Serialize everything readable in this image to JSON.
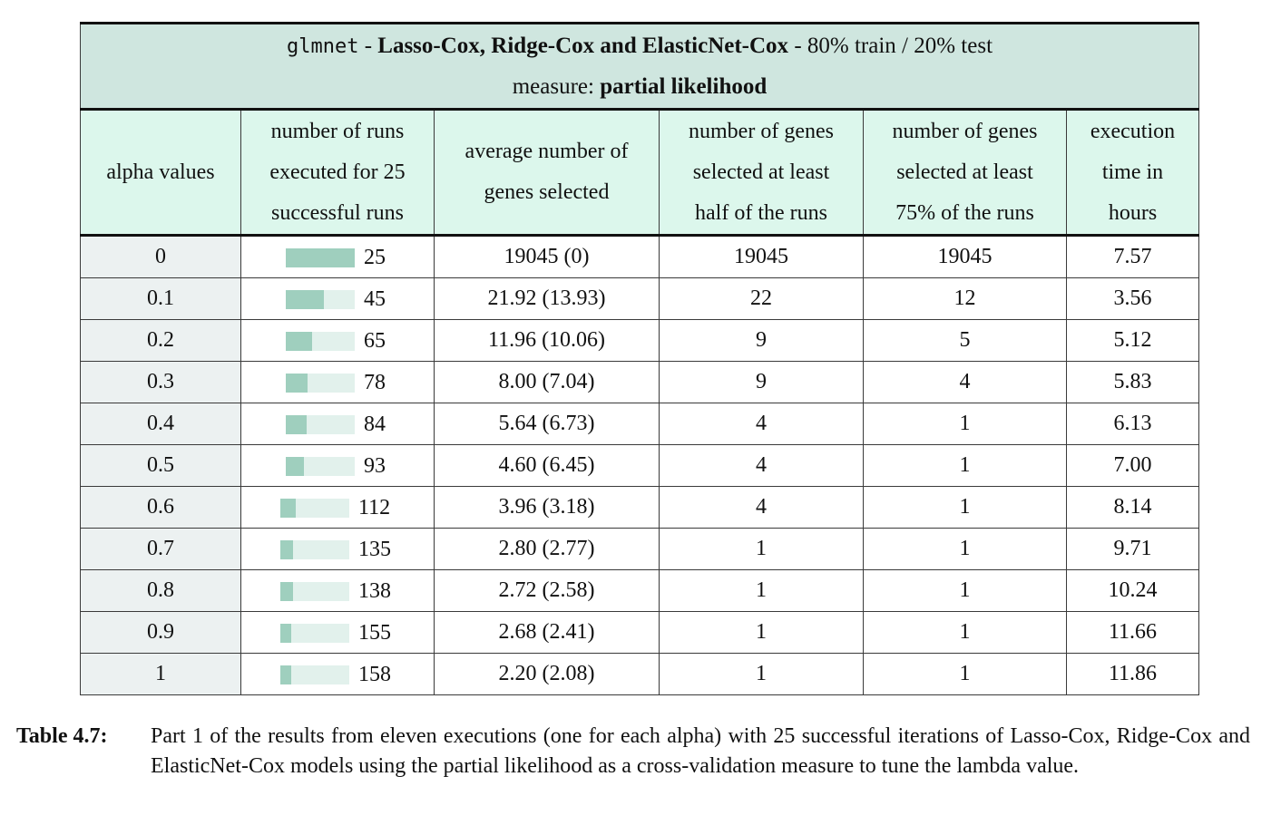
{
  "table": {
    "title": {
      "code": "glmnet",
      "sep1": " - ",
      "models": "Lasso-Cox, Ridge-Cox and ElasticNet-Cox",
      "sep2": " - ",
      "split": "80% train / 20% test",
      "measure_label": "measure: ",
      "measure_value": "partial likelihood"
    },
    "headers": [
      {
        "lines": [
          "alpha values"
        ]
      },
      {
        "lines": [
          "number of runs",
          "executed for 25",
          "successful runs"
        ]
      },
      {
        "lines": [
          "average number of",
          "genes selected"
        ]
      },
      {
        "lines": [
          "number of genes",
          "selected at least",
          "half of the runs"
        ]
      },
      {
        "lines": [
          "number of genes",
          "selected at least",
          "75% of the runs"
        ]
      },
      {
        "lines": [
          "execution",
          "time in",
          "hours"
        ]
      }
    ],
    "runs_bar_max": 25,
    "rows": [
      {
        "alpha": "0",
        "runs": 25,
        "runs_label": "25",
        "avg": "19045 (0)",
        "half": "19045",
        "q75": "19045",
        "time": "7.57"
      },
      {
        "alpha": "0.1",
        "runs": 45,
        "runs_label": "45",
        "avg": "21.92 (13.93)",
        "half": "22",
        "q75": "12",
        "time": "3.56"
      },
      {
        "alpha": "0.2",
        "runs": 65,
        "runs_label": "65",
        "avg": "11.96 (10.06)",
        "half": "9",
        "q75": "5",
        "time": "5.12"
      },
      {
        "alpha": "0.3",
        "runs": 78,
        "runs_label": "78",
        "avg": "8.00 (7.04)",
        "half": "9",
        "q75": "4",
        "time": "5.83"
      },
      {
        "alpha": "0.4",
        "runs": 84,
        "runs_label": "84",
        "avg": "5.64 (6.73)",
        "half": "4",
        "q75": "1",
        "time": "6.13"
      },
      {
        "alpha": "0.5",
        "runs": 93,
        "runs_label": "93",
        "avg": "4.60 (6.45)",
        "half": "4",
        "q75": "1",
        "time": "7.00"
      },
      {
        "alpha": "0.6",
        "runs": 112,
        "runs_label": "112",
        "avg": "3.96 (3.18)",
        "half": "4",
        "q75": "1",
        "time": "8.14"
      },
      {
        "alpha": "0.7",
        "runs": 135,
        "runs_label": "135",
        "avg": "2.80 (2.77)",
        "half": "1",
        "q75": "1",
        "time": "9.71"
      },
      {
        "alpha": "0.8",
        "runs": 138,
        "runs_label": "138",
        "avg": "2.72 (2.58)",
        "half": "1",
        "q75": "1",
        "time": "10.24"
      },
      {
        "alpha": "0.9",
        "runs": 155,
        "runs_label": "155",
        "avg": "2.68 (2.41)",
        "half": "1",
        "q75": "1",
        "time": "11.66"
      },
      {
        "alpha": "1",
        "runs": 158,
        "runs_label": "158",
        "avg": "2.20 (2.08)",
        "half": "1",
        "q75": "1",
        "time": "11.86"
      }
    ]
  },
  "caption": {
    "label": "Table 4.7:",
    "text": "Part 1 of the results from eleven executions (one for each alpha) with 25 successful iterations of Lasso-Cox, Ridge-Cox and ElasticNet-Cox models using the partial likelihood as a cross-validation measure to tune the lambda value."
  },
  "colors": {
    "title_bg": "#cfe6df",
    "header_bg": "#dcf7ec",
    "alpha_col_bg": "#ecf1f1",
    "bar_fill": "#9fcfbe",
    "bar_track": "#e2f1ec"
  }
}
